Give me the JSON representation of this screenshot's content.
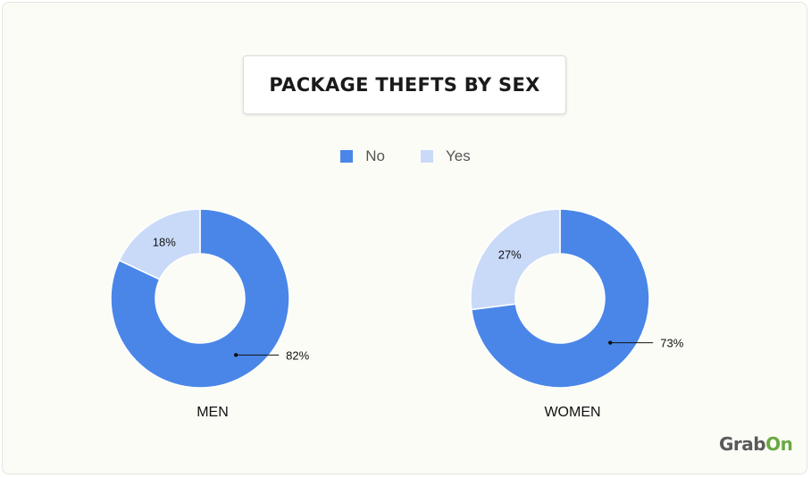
{
  "title": "PACKAGE THEFTS BY SEX",
  "legend": [
    {
      "label": "No",
      "color": "#4a86e8"
    },
    {
      "label": "Yes",
      "color": "#c9daf8"
    }
  ],
  "brand": {
    "part1": "Grab",
    "part2": "On"
  },
  "chart_data": [
    {
      "type": "pie",
      "label": "MEN",
      "categories": [
        "No",
        "Yes"
      ],
      "values": [
        82,
        18
      ],
      "value_labels": [
        "82%",
        "18%"
      ],
      "colors": [
        "#4a86e8",
        "#c9daf8"
      ],
      "donut": true
    },
    {
      "type": "pie",
      "label": "WOMEN",
      "categories": [
        "No",
        "Yes"
      ],
      "values": [
        73,
        27
      ],
      "value_labels": [
        "73%",
        "27%"
      ],
      "colors": [
        "#4a86e8",
        "#c9daf8"
      ],
      "donut": true
    }
  ]
}
